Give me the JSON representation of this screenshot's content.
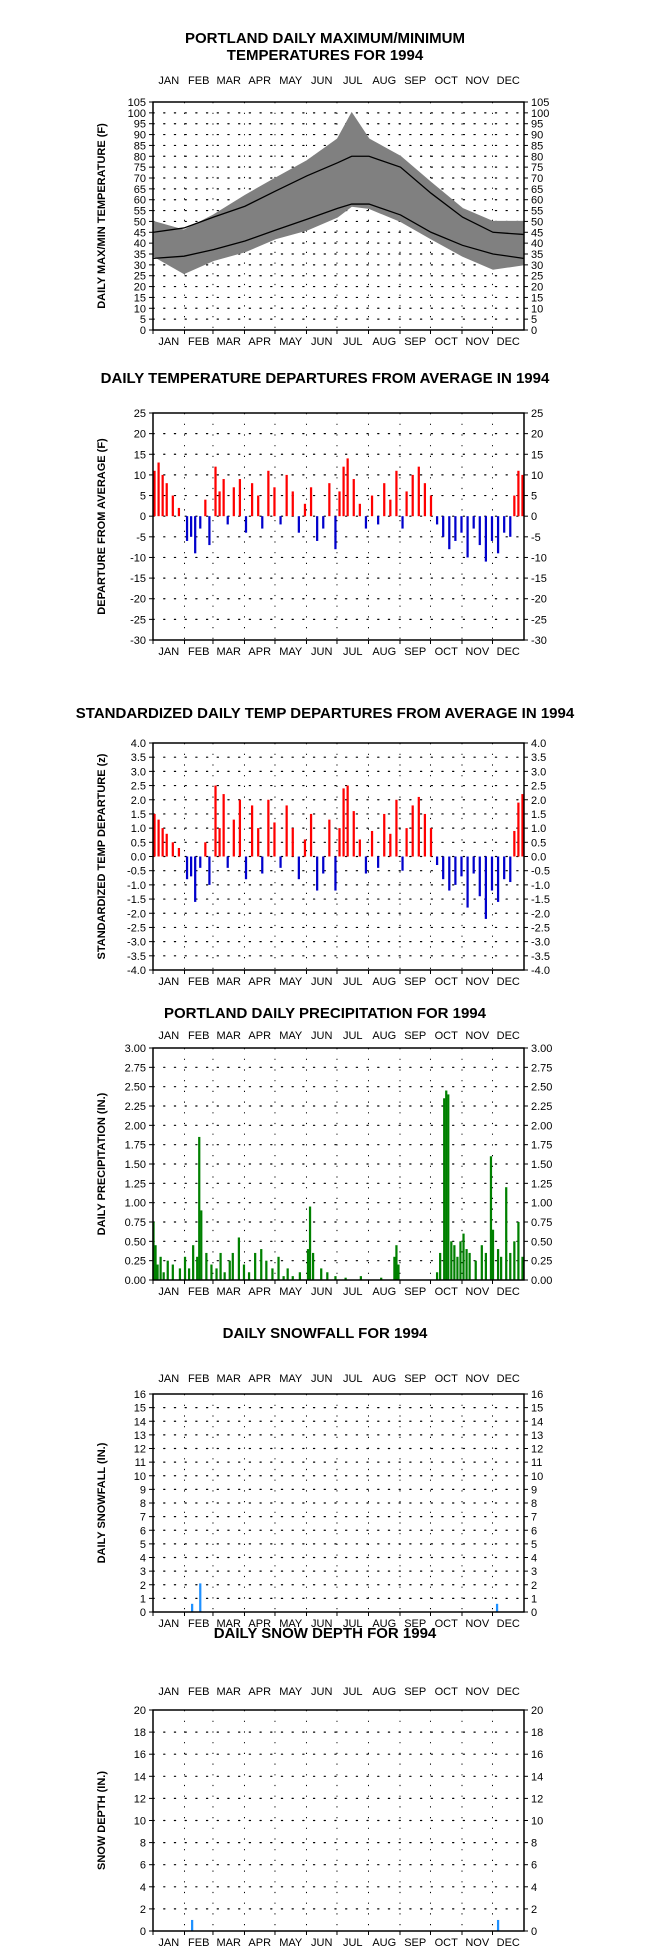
{
  "chart_data": [
    {
      "type": "area",
      "title": [
        "PORTLAND DAILY MAXIMUM/MINIMUM",
        "TEMPERATURES FOR 1994"
      ],
      "ylabel": "DAILY MAX/MIN TEMPERATURE (F)",
      "ylim": [
        0,
        105
      ],
      "yticks": [
        0,
        5,
        10,
        15,
        20,
        25,
        30,
        35,
        40,
        45,
        50,
        55,
        60,
        65,
        70,
        75,
        80,
        85,
        90,
        95,
        100,
        105
      ],
      "months": [
        "JAN",
        "FEB",
        "MAR",
        "APR",
        "MAY",
        "JUN",
        "JUL",
        "AUG",
        "SEP",
        "OCT",
        "NOV",
        "DEC"
      ],
      "month_days": [
        31,
        28,
        31,
        30,
        31,
        30,
        31,
        31,
        30,
        31,
        30,
        31
      ],
      "grid": true,
      "series": [
        {
          "role": "observed-range",
          "color": "#808080",
          "x": [
            1,
            31,
            60,
            91,
            121,
            152,
            182,
            196,
            213,
            244,
            274,
            305,
            335,
            365
          ],
          "high": [
            50,
            46,
            53,
            62,
            70,
            78,
            88,
            100,
            88,
            80,
            68,
            56,
            50,
            50
          ],
          "low": [
            34,
            26,
            32,
            36,
            42,
            46,
            52,
            57,
            56,
            50,
            42,
            34,
            28,
            30
          ]
        },
        {
          "role": "normal-high",
          "color": "#000000",
          "x": [
            1,
            31,
            60,
            91,
            121,
            152,
            182,
            196,
            213,
            244,
            274,
            305,
            335,
            365
          ],
          "values": [
            45,
            47,
            52,
            57,
            64,
            71,
            77,
            80,
            80,
            75,
            63,
            52,
            45,
            44
          ]
        },
        {
          "role": "normal-low",
          "color": "#000000",
          "x": [
            1,
            31,
            60,
            91,
            121,
            152,
            182,
            196,
            213,
            244,
            274,
            305,
            335,
            365
          ],
          "values": [
            33,
            34,
            37,
            41,
            46,
            51,
            56,
            58,
            58,
            53,
            45,
            39,
            35,
            33
          ]
        }
      ]
    },
    {
      "type": "bar",
      "title": "DAILY TEMPERATURE DEPARTURES FROM AVERAGE IN 1994",
      "ylabel": "DEPARTURE FROM AVERAGE (F)",
      "ylim": [
        -30,
        25
      ],
      "yticks": [
        -30,
        -25,
        -20,
        -15,
        -10,
        -5,
        0,
        5,
        10,
        15,
        20,
        25
      ],
      "months": [
        "JAN",
        "FEB",
        "MAR",
        "APR",
        "MAY",
        "JUN",
        "JUL",
        "AUG",
        "SEP",
        "OCT",
        "NOV",
        "DEC"
      ],
      "month_days": [
        31,
        28,
        31,
        30,
        31,
        30,
        31,
        31,
        30,
        31,
        30,
        31
      ],
      "grid": true,
      "positive_color": "#ff0000",
      "negative_color": "#0000cc",
      "x": [
        2,
        6,
        10,
        14,
        20,
        26,
        34,
        38,
        42,
        47,
        52,
        56,
        62,
        66,
        70,
        74,
        80,
        86,
        92,
        98,
        104,
        108,
        114,
        120,
        126,
        132,
        138,
        144,
        150,
        156,
        162,
        168,
        174,
        180,
        184,
        188,
        192,
        198,
        204,
        210,
        216,
        222,
        228,
        234,
        240,
        246,
        250,
        256,
        262,
        268,
        274,
        280,
        286,
        292,
        298,
        304,
        310,
        316,
        322,
        328,
        334,
        340,
        346,
        352,
        356,
        360,
        364
      ],
      "values": [
        11,
        13,
        10,
        8,
        5,
        2,
        -6,
        -5,
        -9,
        -3,
        4,
        -7,
        12,
        6,
        9,
        -2,
        7,
        9,
        -4,
        8,
        5,
        -3,
        11,
        7,
        -2,
        10,
        6,
        -4,
        3,
        7,
        -6,
        -3,
        8,
        -8,
        6,
        12,
        14,
        9,
        3,
        -3,
        5,
        -2,
        8,
        4,
        11,
        -3,
        6,
        10,
        12,
        8,
        5,
        -2,
        -5,
        -8,
        -6,
        -4,
        -10,
        -3,
        -7,
        -11,
        -6,
        -9,
        -4,
        -5,
        5,
        11,
        10
      ]
    },
    {
      "type": "bar",
      "title": "STANDARDIZED DAILY TEMP DEPARTURES FROM AVERAGE IN 1994",
      "ylabel": "STANDARDIZED TEMP DEPARTURE (z)",
      "ylim": [
        -4.0,
        4.0
      ],
      "yticks": [
        -4.0,
        -3.5,
        -3.0,
        -2.5,
        -2.0,
        -1.5,
        -1.0,
        -0.5,
        0.0,
        0.5,
        1.0,
        1.5,
        2.0,
        2.5,
        3.0,
        3.5,
        4.0
      ],
      "months": [
        "JAN",
        "FEB",
        "MAR",
        "APR",
        "MAY",
        "JUN",
        "JUL",
        "AUG",
        "SEP",
        "OCT",
        "NOV",
        "DEC"
      ],
      "month_days": [
        31,
        28,
        31,
        30,
        31,
        30,
        31,
        31,
        30,
        31,
        30,
        31
      ],
      "grid": true,
      "positive_color": "#ff0000",
      "negative_color": "#0000cc",
      "x": [
        2,
        6,
        10,
        14,
        20,
        26,
        34,
        38,
        42,
        47,
        52,
        56,
        62,
        66,
        70,
        74,
        80,
        86,
        92,
        98,
        104,
        108,
        114,
        120,
        126,
        132,
        138,
        144,
        150,
        156,
        162,
        168,
        174,
        180,
        184,
        188,
        192,
        198,
        204,
        210,
        216,
        222,
        228,
        234,
        240,
        246,
        250,
        256,
        262,
        268,
        274,
        280,
        286,
        292,
        298,
        304,
        310,
        316,
        322,
        328,
        334,
        340,
        346,
        352,
        356,
        360,
        364
      ],
      "values": [
        1.5,
        1.3,
        1.0,
        0.8,
        0.5,
        0.3,
        -0.8,
        -0.7,
        -1.6,
        -0.4,
        0.5,
        -1.0,
        2.5,
        1.0,
        2.2,
        -0.4,
        1.3,
        2.0,
        -0.8,
        1.8,
        1.0,
        -0.6,
        2.0,
        1.2,
        -0.4,
        1.8,
        1.0,
        -0.8,
        0.6,
        1.5,
        -1.2,
        -0.6,
        1.3,
        -1.2,
        1.0,
        2.4,
        2.5,
        1.6,
        0.6,
        -0.6,
        0.9,
        -0.4,
        1.5,
        0.8,
        2.0,
        -0.5,
        1.0,
        1.8,
        2.1,
        1.5,
        1.0,
        -0.3,
        -0.8,
        -1.2,
        -1.0,
        -0.7,
        -1.8,
        -0.6,
        -1.4,
        -2.2,
        -1.2,
        -1.6,
        -0.8,
        -0.9,
        0.9,
        1.9,
        2.2
      ]
    },
    {
      "type": "bar",
      "title": "PORTLAND DAILY PRECIPITATION FOR 1994",
      "ylabel": "DAILY PRECIPITATION (IN.)",
      "ylim": [
        0,
        3.0
      ],
      "yticks": [
        0.0,
        0.25,
        0.5,
        0.75,
        1.0,
        1.25,
        1.5,
        1.75,
        2.0,
        2.25,
        2.5,
        2.75,
        3.0
      ],
      "months": [
        "JAN",
        "FEB",
        "MAR",
        "APR",
        "MAY",
        "JUN",
        "JUL",
        "AUG",
        "SEP",
        "OCT",
        "NOV",
        "DEC"
      ],
      "month_days": [
        31,
        28,
        31,
        30,
        31,
        30,
        31,
        31,
        30,
        31,
        30,
        31
      ],
      "grid": true,
      "color": "#008000",
      "x": [
        1,
        3,
        5,
        8,
        11,
        15,
        20,
        27,
        32,
        36,
        40,
        44,
        46,
        48,
        53,
        58,
        63,
        67,
        71,
        76,
        79,
        85,
        90,
        95,
        101,
        107,
        112,
        118,
        124,
        129,
        133,
        138,
        145,
        153,
        155,
        158,
        166,
        172,
        180,
        190,
        205,
        225,
        238,
        240,
        242,
        280,
        283,
        287,
        289,
        291,
        294,
        297,
        300,
        303,
        306,
        309,
        312,
        318,
        324,
        328,
        333,
        335,
        340,
        343,
        348,
        352,
        356,
        360,
        364
      ],
      "values": [
        0.75,
        0.45,
        0.2,
        0.3,
        0.1,
        0.25,
        0.2,
        0.15,
        0.3,
        0.15,
        0.45,
        0.3,
        1.85,
        0.9,
        0.35,
        0.2,
        0.15,
        0.35,
        0.1,
        0.25,
        0.35,
        0.55,
        0.2,
        0.1,
        0.35,
        0.4,
        0.25,
        0.15,
        0.3,
        0.05,
        0.15,
        0.05,
        0.1,
        0.4,
        0.95,
        0.35,
        0.15,
        0.1,
        0.05,
        0.03,
        0.05,
        0.03,
        0.3,
        0.45,
        0.2,
        0.1,
        0.35,
        2.35,
        2.45,
        2.4,
        0.5,
        0.45,
        0.3,
        0.5,
        0.6,
        0.4,
        0.35,
        0.25,
        0.45,
        0.35,
        1.6,
        0.65,
        0.4,
        0.3,
        1.2,
        0.35,
        0.5,
        0.75,
        0.3
      ]
    },
    {
      "type": "bar",
      "title": "DAILY SNOWFALL FOR 1994",
      "ylabel": "DAILY SNOWFALL (IN.)",
      "ylim": [
        0,
        16
      ],
      "yticks": [
        0,
        1,
        2,
        3,
        4,
        5,
        6,
        7,
        8,
        9,
        10,
        11,
        12,
        13,
        14,
        15,
        16
      ],
      "months": [
        "JAN",
        "FEB",
        "MAR",
        "APR",
        "MAY",
        "JUN",
        "JUL",
        "AUG",
        "SEP",
        "OCT",
        "NOV",
        "DEC"
      ],
      "month_days": [
        31,
        28,
        31,
        30,
        31,
        30,
        31,
        31,
        30,
        31,
        30,
        31
      ],
      "grid": true,
      "color": "#1e90ff",
      "x": [
        39,
        47,
        339
      ],
      "values": [
        0.6,
        2.1,
        0.6
      ]
    },
    {
      "type": "bar",
      "title": "DAILY SNOW DEPTH FOR 1994",
      "ylabel": "SNOW DEPTH (IN.)",
      "ylim": [
        0,
        20
      ],
      "yticks": [
        0,
        2,
        4,
        6,
        8,
        10,
        12,
        14,
        16,
        18,
        20
      ],
      "months": [
        "JAN",
        "FEB",
        "MAR",
        "APR",
        "MAY",
        "JUN",
        "JUL",
        "AUG",
        "SEP",
        "OCT",
        "NOV",
        "DEC"
      ],
      "month_days": [
        31,
        28,
        31,
        30,
        31,
        30,
        31,
        31,
        30,
        31,
        30,
        31
      ],
      "grid": true,
      "color": "#1e90ff",
      "x": [
        39,
        340
      ],
      "values": [
        1,
        1
      ]
    }
  ]
}
